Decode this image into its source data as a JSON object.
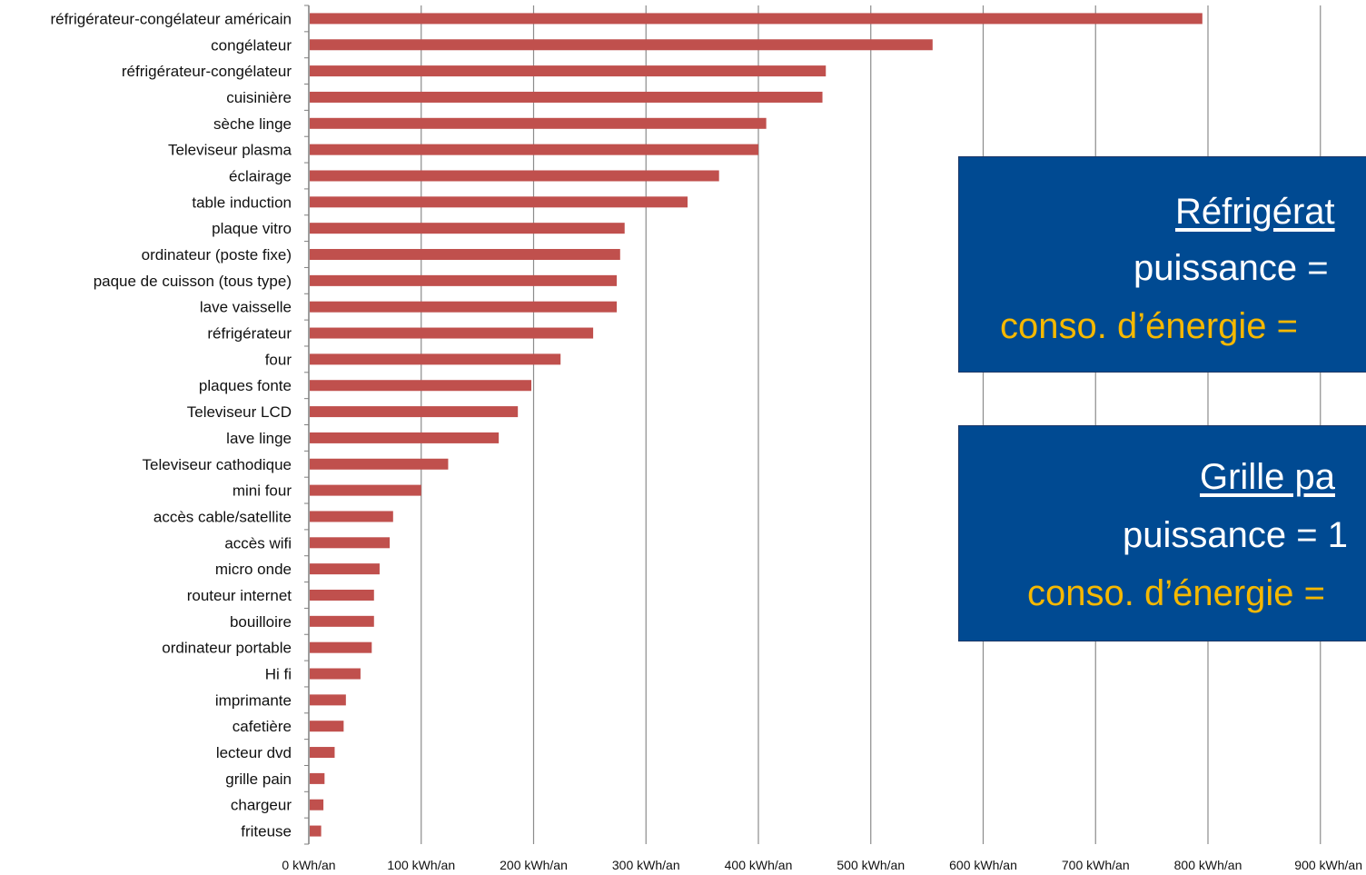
{
  "chart_data": {
    "type": "bar",
    "orientation": "horizontal",
    "categories": [
      "réfrigérateur-congélateur américain",
      "congélateur",
      "réfrigérateur-congélateur",
      "cuisinière",
      "sèche linge",
      "Televiseur plasma",
      "éclairage",
      "table induction",
      "plaque vitro",
      "ordinateur (poste fixe)",
      "paque de cuisson (tous type)",
      "lave vaisselle",
      "réfrigérateur",
      "four",
      "plaques fonte",
      "Televiseur LCD",
      "lave linge",
      "Televiseur cathodique",
      "mini four",
      "accès cable/satellite",
      "accès wifi",
      "micro onde",
      "routeur internet",
      "bouilloire",
      "ordinateur portable",
      "Hi fi",
      "imprimante",
      "cafetière",
      "lecteur dvd",
      "grille pain",
      "chargeur",
      "friteuse"
    ],
    "values": [
      795,
      555,
      460,
      457,
      407,
      400,
      365,
      337,
      281,
      277,
      274,
      274,
      253,
      224,
      198,
      186,
      169,
      124,
      100,
      75,
      72,
      63,
      58,
      58,
      56,
      46,
      33,
      31,
      23,
      14,
      13,
      11
    ],
    "xlim": [
      0,
      900
    ],
    "xticks": [
      "0 kWh/an",
      "100 kWh/an",
      "200 kWh/an",
      "300 kWh/an",
      "400 kWh/an",
      "500 kWh/an",
      "600 kWh/an",
      "700 kWh/an",
      "800 kWh/an",
      "900 kWh/an"
    ],
    "grid": true,
    "bar_color": "#c0504d",
    "title": "",
    "xlabel": "",
    "ylabel": ""
  },
  "info_boxes": [
    {
      "title": "Réfrigérat",
      "power": "puissance =",
      "energy": "conso. d’énergie ="
    },
    {
      "title": "Grille pa",
      "power": "puissance = 1",
      "energy": "conso. d’énergie ="
    }
  ],
  "colors": {
    "box_bg": "#004a92",
    "box_text": "#ffffff",
    "box_energy": "#f5b800"
  }
}
